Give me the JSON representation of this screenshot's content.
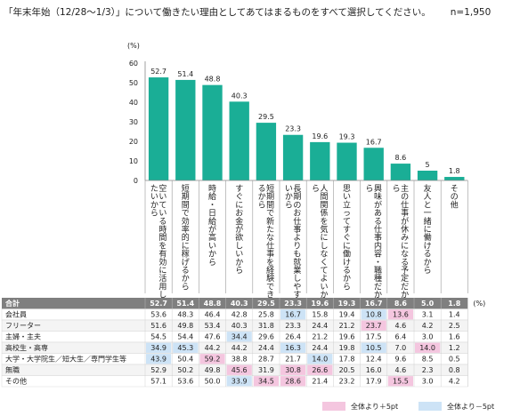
{
  "title": "「年末年始（12/28～1/3）」について働きたい理由としてあてはまるものをすべて選択してください。",
  "n_label": "n=1,950",
  "chart_data": {
    "type": "bar",
    "ylabel": "(%)",
    "ylim": [
      0,
      60
    ],
    "yticks": [
      "0",
      "10",
      "20",
      "30",
      "40",
      "50",
      "60"
    ],
    "categories": [
      "空いている時間を有効に活用したいから",
      "短期間で効率的に稼げるから",
      "時給・日給が高いから",
      "すぐにお金が欲しいから",
      "短期間で新たな仕事を経験できるから",
      "長期のお仕事よりも就業しやすいから",
      "人間関係を気にしなくてよいから",
      "思い立ってすぐに働けるから",
      "興味がある仕事内容・職種だから",
      "主の仕事が休みになる予定だから",
      "友人と一緒に働けるから",
      "その他"
    ],
    "values": [
      52.7,
      51.4,
      48.8,
      40.3,
      29.5,
      23.3,
      19.6,
      19.3,
      16.7,
      8.6,
      5.0,
      1.8
    ],
    "bar_color": "#1aae96",
    "table": {
      "unit": "(%)",
      "rows": [
        {
          "label": "合計",
          "values": [
            "52.7",
            "51.4",
            "48.8",
            "40.3",
            "29.5",
            "23.3",
            "19.6",
            "19.3",
            "16.7",
            "8.6",
            "5.0",
            "1.8"
          ],
          "hl": [
            0,
            0,
            0,
            0,
            0,
            0,
            0,
            0,
            0,
            0,
            0,
            0
          ]
        },
        {
          "label": "会社員",
          "values": [
            "53.6",
            "48.3",
            "46.4",
            "42.8",
            "25.8",
            "16.7",
            "15.8",
            "19.4",
            "10.8",
            "13.6",
            "3.1",
            "1.4"
          ],
          "hl": [
            0,
            0,
            0,
            0,
            0,
            -1,
            0,
            0,
            -1,
            1,
            0,
            0
          ]
        },
        {
          "label": "フリーター",
          "values": [
            "51.6",
            "49.8",
            "53.4",
            "40.3",
            "31.8",
            "23.3",
            "24.4",
            "21.2",
            "23.7",
            "4.6",
            "4.2",
            "2.5"
          ],
          "hl": [
            0,
            0,
            0,
            0,
            0,
            0,
            0,
            0,
            1,
            0,
            0,
            0
          ]
        },
        {
          "label": "主婦・主夫",
          "values": [
            "54.5",
            "54.4",
            "47.6",
            "34.4",
            "29.6",
            "26.4",
            "21.2",
            "19.6",
            "17.5",
            "6.4",
            "3.0",
            "1.6"
          ],
          "hl": [
            0,
            0,
            0,
            -1,
            0,
            0,
            0,
            0,
            0,
            0,
            0,
            0
          ]
        },
        {
          "label": "高校生・高専",
          "values": [
            "34.9",
            "45.3",
            "44.2",
            "44.2",
            "24.4",
            "16.3",
            "24.4",
            "19.8",
            "10.5",
            "7.0",
            "14.0",
            "1.2"
          ],
          "hl": [
            -1,
            -1,
            0,
            0,
            0,
            -1,
            0,
            0,
            -1,
            0,
            1,
            0
          ]
        },
        {
          "label": "大学・大学院生／短大生／専門学生等",
          "values": [
            "43.9",
            "50.4",
            "59.2",
            "38.8",
            "28.7",
            "21.7",
            "14.0",
            "17.8",
            "12.4",
            "9.6",
            "8.5",
            "0.5"
          ],
          "hl": [
            -1,
            0,
            1,
            0,
            0,
            0,
            -1,
            0,
            0,
            0,
            0,
            0
          ]
        },
        {
          "label": "無職",
          "values": [
            "52.9",
            "50.2",
            "49.8",
            "45.6",
            "31.9",
            "30.8",
            "26.6",
            "20.5",
            "16.0",
            "4.6",
            "2.3",
            "0.8"
          ],
          "hl": [
            0,
            0,
            0,
            1,
            0,
            1,
            1,
            0,
            0,
            0,
            0,
            0
          ]
        },
        {
          "label": "その他",
          "values": [
            "57.1",
            "53.6",
            "50.0",
            "33.9",
            "34.5",
            "28.6",
            "21.4",
            "23.2",
            "17.9",
            "15.5",
            "3.0",
            "4.2"
          ],
          "hl": [
            0,
            0,
            0,
            -1,
            1,
            1,
            0,
            0,
            0,
            1,
            0,
            0
          ]
        }
      ]
    },
    "legend": [
      {
        "label": "全体より＋5pt",
        "color": "#f4c6df"
      },
      {
        "label": "全体より－5pt",
        "color": "#cde3f6"
      }
    ]
  }
}
